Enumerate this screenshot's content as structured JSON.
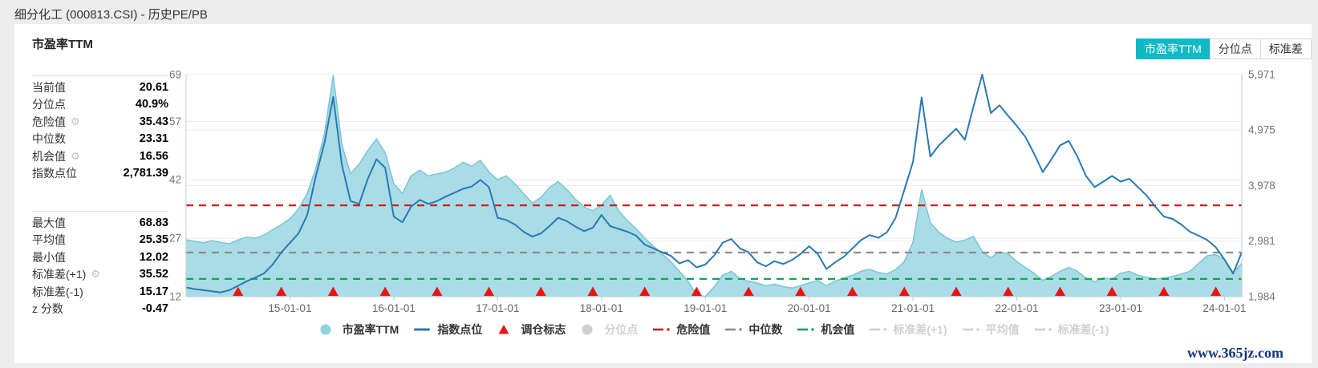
{
  "page": {
    "title": "细分化工 (000813.CSI) - 历史PE/PB",
    "watermark": "www.365jz.com"
  },
  "card": {
    "title": "市盈率TTM"
  },
  "view_buttons": [
    {
      "label": "市盈率TTM",
      "active": true
    },
    {
      "label": "分位点",
      "active": false
    },
    {
      "label": "标准差",
      "active": false
    }
  ],
  "colors": {
    "accent_active_button": "#0fb9c5",
    "pe_area_fill": "#a9dce6",
    "pe_area_stroke": "#79c6d6",
    "index_line": "#2a7ab2",
    "danger_line": "#c9211e",
    "median_line": "#8c8c8c",
    "opportunity_line": "#18a15c",
    "rebalance_marker": "#e81414",
    "disabled_legend": "#d0d0d0"
  },
  "stats": {
    "block1": [
      {
        "label": "当前值",
        "value": "20.61",
        "gear": false
      },
      {
        "label": "分位点",
        "value": "40.9%",
        "gear": false
      },
      {
        "label": "危险值",
        "value": "35.43",
        "gear": true
      },
      {
        "label": "中位数",
        "value": "23.31",
        "gear": false
      },
      {
        "label": "机会值",
        "value": "16.56",
        "gear": true
      },
      {
        "label": "指数点位",
        "value": "2,781.39",
        "gear": false
      }
    ],
    "block2": [
      {
        "label": "最大值",
        "value": "68.83",
        "gear": false
      },
      {
        "label": "平均值",
        "value": "25.35",
        "gear": false
      },
      {
        "label": "最小值",
        "value": "12.02",
        "gear": false
      },
      {
        "label": "标准差(+1)",
        "value": "35.52",
        "gear": true
      },
      {
        "label": "标准差(-1)",
        "value": "15.17",
        "gear": false
      },
      {
        "label": "z 分数",
        "value": "-0.47",
        "gear": false
      }
    ]
  },
  "chart_data": {
    "type": "area",
    "title": "市盈率TTM",
    "x_start_month": "2014-01",
    "x_interval": "monthly",
    "x_tick_labels": [
      "15-01-01",
      "16-01-01",
      "17-01-01",
      "18-01-01",
      "19-01-01",
      "20-01-01",
      "21-01-01",
      "22-01-01",
      "23-01-01",
      "24-01-01"
    ],
    "left_axis": {
      "min": 12,
      "max": 69,
      "ticks": [
        12,
        27,
        42,
        57,
        69
      ]
    },
    "right_axis": {
      "min": 1984,
      "max": 5971,
      "ticks": [
        1984,
        2981,
        3978,
        4975,
        5971
      ],
      "tick_labels": [
        "1,984",
        "2,981",
        "3,978",
        "4,975",
        "5,971"
      ]
    },
    "series": [
      {
        "name": "市盈率TTM",
        "type": "area",
        "axis": "left",
        "values": [
          26.6,
          26.2,
          25.8,
          26.4,
          25.9,
          25.6,
          26.5,
          27.3,
          27.0,
          27.8,
          29.2,
          30.5,
          32.0,
          34.5,
          38.5,
          45.0,
          54.0,
          68.83,
          51.0,
          43.5,
          46.0,
          49.5,
          52.5,
          49.0,
          41.0,
          38.5,
          43.0,
          44.5,
          43.0,
          43.5,
          44.0,
          45.0,
          46.5,
          45.5,
          47.0,
          44.0,
          42.0,
          43.0,
          41.0,
          38.5,
          36.0,
          37.5,
          40.0,
          41.5,
          39.5,
          37.0,
          35.0,
          34.0,
          35.5,
          38.0,
          34.0,
          31.5,
          29.5,
          27.0,
          25.0,
          23.0,
          21.0,
          18.5,
          16.0,
          12.5,
          12.02,
          14.5,
          17.5,
          18.5,
          16.5,
          16.0,
          15.5,
          14.8,
          15.2,
          14.6,
          14.2,
          14.8,
          15.5,
          16.2,
          14.8,
          16.0,
          16.8,
          17.5,
          18.5,
          19.0,
          18.2,
          17.8,
          19.0,
          21.0,
          26.0,
          39.5,
          31.0,
          28.5,
          27.0,
          26.0,
          26.5,
          27.5,
          23.5,
          22.0,
          23.5,
          23.0,
          21.0,
          19.5,
          18.0,
          16.2,
          17.2,
          18.5,
          19.5,
          18.5,
          16.8,
          15.8,
          16.8,
          16.5,
          18.0,
          18.5,
          17.5,
          17.0,
          16.5,
          16.8,
          17.2,
          17.8,
          18.5,
          20.5,
          22.5,
          22.8,
          21.5,
          18.2,
          20.61
        ]
      },
      {
        "name": "指数点位",
        "type": "line",
        "axis": "right",
        "values": [
          2150,
          2120,
          2100,
          2080,
          2060,
          2100,
          2180,
          2260,
          2330,
          2400,
          2560,
          2780,
          2950,
          3120,
          3450,
          4150,
          4750,
          5570,
          4350,
          3700,
          3650,
          4100,
          4450,
          4300,
          3420,
          3320,
          3600,
          3720,
          3650,
          3700,
          3780,
          3850,
          3920,
          3960,
          4080,
          3950,
          3400,
          3360,
          3280,
          3150,
          3060,
          3120,
          3250,
          3400,
          3340,
          3240,
          3160,
          3220,
          3450,
          3250,
          3200,
          3150,
          3080,
          2920,
          2850,
          2780,
          2720,
          2580,
          2640,
          2510,
          2560,
          2720,
          2950,
          3020,
          2850,
          2780,
          2600,
          2530,
          2620,
          2570,
          2640,
          2750,
          2890,
          2750,
          2480,
          2600,
          2700,
          2850,
          3000,
          3090,
          3040,
          3140,
          3400,
          3900,
          4400,
          5560,
          4500,
          4700,
          4850,
          5000,
          4800,
          5400,
          5971,
          5280,
          5420,
          5230,
          5050,
          4850,
          4550,
          4220,
          4450,
          4700,
          4780,
          4500,
          4150,
          3950,
          4050,
          4150,
          4050,
          4100,
          3950,
          3800,
          3600,
          3420,
          3380,
          3280,
          3150,
          3080,
          3000,
          2870,
          2650,
          2397,
          2781.39
        ]
      }
    ],
    "reference_lines": [
      {
        "name": "危险值",
        "value": 35.43,
        "axis": "left",
        "style": "dashed",
        "color": "#c9211e"
      },
      {
        "name": "中位数",
        "value": 23.31,
        "axis": "left",
        "style": "dashed",
        "color": "#8c8c8c"
      },
      {
        "name": "机会值",
        "value": 16.56,
        "axis": "left",
        "style": "dashed",
        "color": "#18a15c"
      }
    ],
    "markers": {
      "name": "调仓标志",
      "shape": "triangle",
      "color": "#e81414",
      "month_indices": [
        6,
        11,
        17,
        23,
        29,
        35,
        41,
        47,
        53,
        59,
        65,
        71,
        77,
        83,
        89,
        95,
        101,
        107,
        113,
        119
      ]
    },
    "legend": [
      {
        "label": "市盈率TTM",
        "marker": "circle",
        "color": "#8ed3dd",
        "enabled": true
      },
      {
        "label": "指数点位",
        "marker": "line",
        "color": "#2a7ab2",
        "enabled": true
      },
      {
        "label": "调仓标志",
        "marker": "triangle",
        "color": "#e81414",
        "enabled": true
      },
      {
        "label": "分位点",
        "marker": "circle",
        "color": "#d0d0d0",
        "enabled": false
      },
      {
        "label": "危险值",
        "marker": "dashdot",
        "color": "#c9211e",
        "enabled": true
      },
      {
        "label": "中位数",
        "marker": "dashdot",
        "color": "#8c8c8c",
        "enabled": true
      },
      {
        "label": "机会值",
        "marker": "dashdot",
        "color": "#18a15c",
        "enabled": true
      },
      {
        "label": "标准差(+1)",
        "marker": "dashdot",
        "color": "#d0d0d0",
        "enabled": false
      },
      {
        "label": "平均值",
        "marker": "dashdot",
        "color": "#d0d0d0",
        "enabled": false
      },
      {
        "label": "标准差(-1)",
        "marker": "dashdot",
        "color": "#d0d0d0",
        "enabled": false
      }
    ],
    "grid": true,
    "legend_position": "bottom"
  }
}
